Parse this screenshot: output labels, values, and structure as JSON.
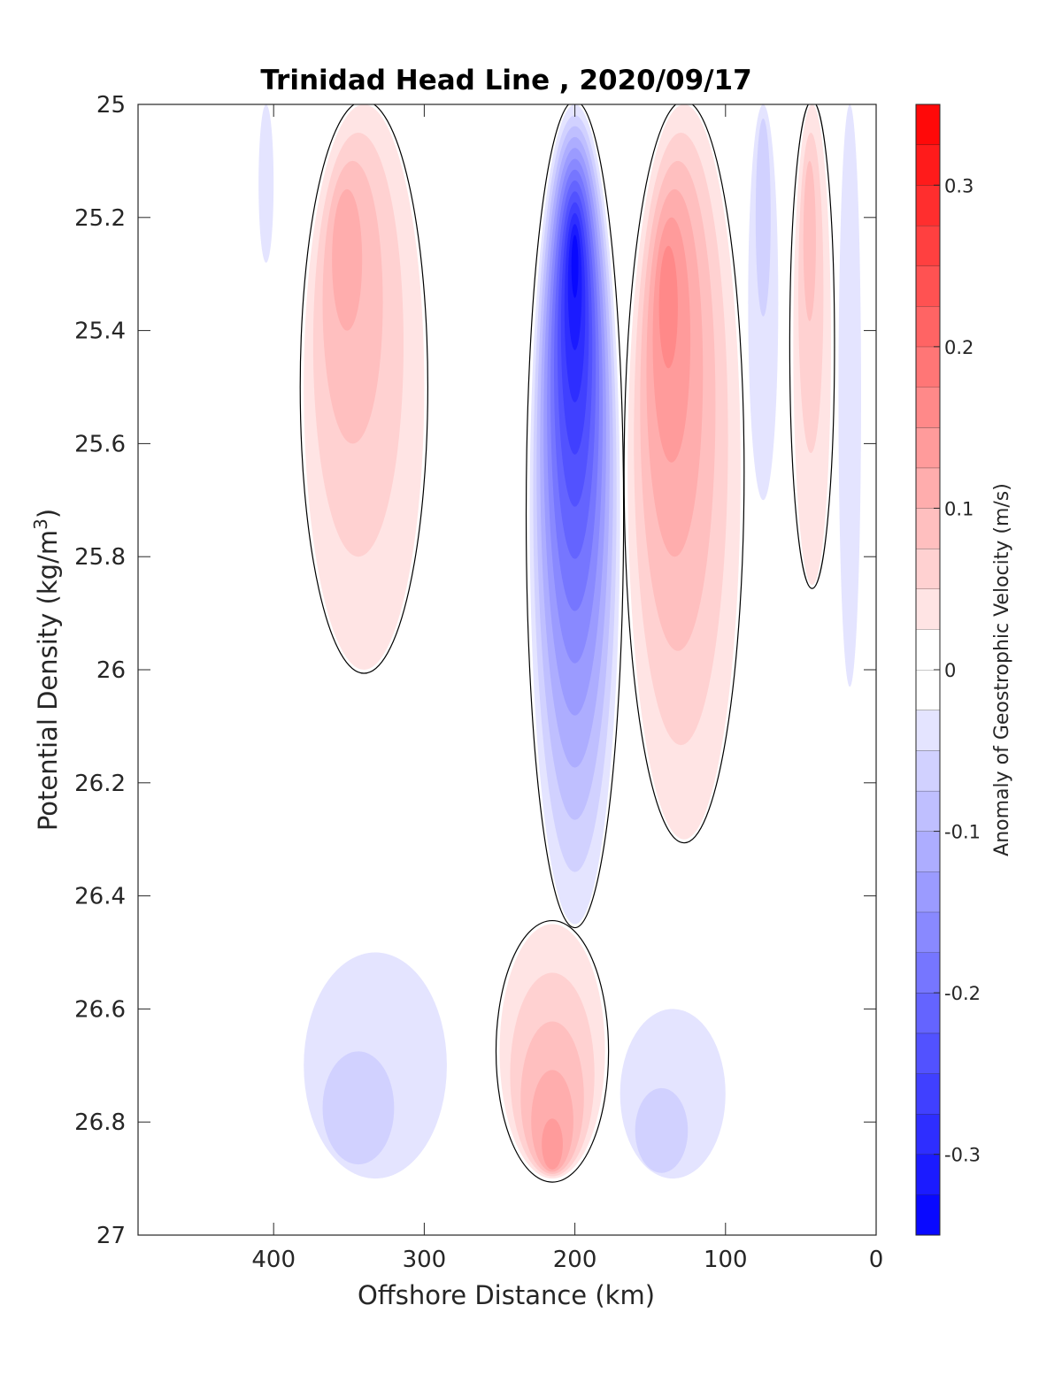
{
  "chart_data": {
    "type": "heatmap",
    "title": "Trinidad Head Line , 2020/09/17",
    "xlabel": "Offshore Distance (km)",
    "ylabel_main": "Potential Density (kg/m",
    "ylabel_sup": "3",
    "ylabel_close": ")",
    "colorbar_label": "Anomaly of Geostrophic Velocity (m/s)",
    "xlim": [
      490,
      0
    ],
    "x_reversed": true,
    "ylim": [
      25,
      27
    ],
    "y_reversed": true,
    "x_ticks": [
      400,
      300,
      200,
      100,
      0
    ],
    "x_tick_labels": [
      "400",
      "300",
      "200",
      "100",
      "0"
    ],
    "y_ticks": [
      25,
      25.2,
      25.4,
      25.6,
      25.8,
      26,
      26.2,
      26.4,
      26.6,
      26.8,
      27
    ],
    "y_tick_labels": [
      "25",
      "25.2",
      "25.4",
      "25.6",
      "25.8",
      "26",
      "26.2",
      "26.4",
      "26.6",
      "26.8",
      "27"
    ],
    "colorbar": {
      "range": [
        -0.35,
        0.35
      ],
      "level_step": 0.025,
      "ticks": [
        0.3,
        0.2,
        0.1,
        0,
        -0.1,
        -0.2,
        -0.3
      ],
      "tick_labels": [
        "0.3",
        "0.2",
        "0.1",
        "0",
        "-0.1",
        "-0.2",
        "-0.3"
      ],
      "positive_color": "#ff0000",
      "negative_color": "#0000ff",
      "zero_color": "#ffffff"
    },
    "contour_line_color": "#000000",
    "grid": false,
    "features": [
      {
        "name": "strong southward jet core",
        "x_range": [
          230,
          170
        ],
        "y_range": [
          25,
          26.45
        ],
        "peak_x": 200,
        "peak_y": 25.25,
        "value": -0.33
      },
      {
        "name": "northward flow band",
        "x_range": [
          165,
          90
        ],
        "y_range": [
          25,
          26.3
        ],
        "peak_x": 140,
        "peak_y": 25.3,
        "value": 0.17
      },
      {
        "name": "offshore northward flow",
        "x_range": [
          380,
          300
        ],
        "y_range": [
          25,
          26
        ],
        "peak_x": 355,
        "peak_y": 25.2,
        "value": 0.1
      },
      {
        "name": "deep northward core",
        "x_range": [
          250,
          180
        ],
        "y_range": [
          26.45,
          26.9
        ],
        "peak_x": 215,
        "peak_y": 26.88,
        "value": 0.14
      },
      {
        "name": "nearshore northward flow",
        "x_range": [
          55,
          30
        ],
        "y_range": [
          25,
          25.85
        ],
        "peak_x": 45,
        "peak_y": 25.15,
        "value": 0.09
      },
      {
        "name": "deep offshore southward flow",
        "x_range": [
          380,
          285
        ],
        "y_range": [
          26.5,
          26.9
        ],
        "peak_x": 355,
        "peak_y": 26.85,
        "value": -0.06
      },
      {
        "name": "deep nearshore southward flow",
        "x_range": [
          170,
          100
        ],
        "y_range": [
          26.6,
          26.9
        ],
        "peak_x": 150,
        "peak_y": 26.88,
        "value": -0.05
      },
      {
        "name": "shallow offshore southward flow",
        "x_range": [
          410,
          400
        ],
        "y_range": [
          25,
          25.28
        ],
        "peak_x": 405,
        "peak_y": 25.05,
        "value": -0.03
      },
      {
        "name": "nearshore southward flow",
        "x_range": [
          85,
          65
        ],
        "y_range": [
          25,
          25.7
        ],
        "peak_x": 75,
        "peak_y": 25.05,
        "value": -0.05
      },
      {
        "name": "coastal southward flow",
        "x_range": [
          25,
          10
        ],
        "y_range": [
          25,
          26.03
        ],
        "peak_x": 18,
        "peak_y": 25.05,
        "value": -0.04
      }
    ]
  }
}
